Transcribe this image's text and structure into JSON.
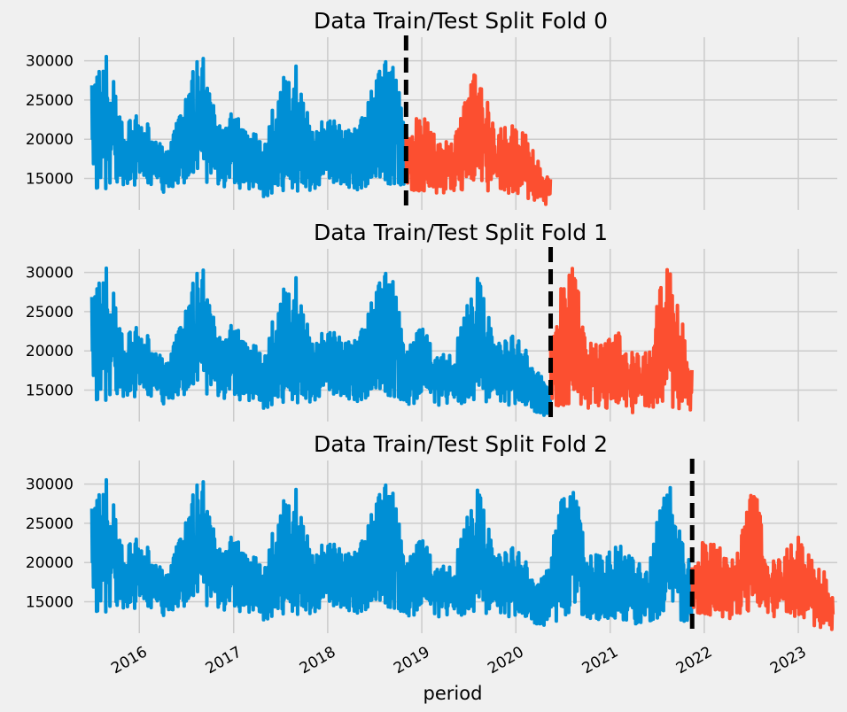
{
  "figure": {
    "xlabel": "period"
  },
  "colors": {
    "train": "#008fd5",
    "test": "#fc4f30",
    "split_line": "#000000",
    "grid": "#cbcbcb",
    "background": "#f0f0f0"
  },
  "chart_data": [
    {
      "type": "line",
      "title": "Data Train/Test Split Fold 0",
      "xlabel": "period",
      "ylabel": "",
      "x_range": [
        "2015-06-01",
        "2023-06-01"
      ],
      "ylim": [
        11000,
        33000
      ],
      "yticks": [
        15000,
        20000,
        25000,
        30000
      ],
      "grid": true,
      "split_date": "2018-11-01",
      "series": [
        {
          "role": "train",
          "x_range": [
            "2015-07-01",
            "2018-11-01"
          ],
          "envelope": [
            [
              "2015-07-01",
              13800,
              28000
            ],
            [
              "2015-09-01",
              13500,
              31000
            ],
            [
              "2015-11-01",
              13800,
              22000
            ],
            [
              "2016-01-01",
              14200,
              23500
            ],
            [
              "2016-03-01",
              13500,
              21000
            ],
            [
              "2016-05-01",
              13000,
              19500
            ],
            [
              "2016-07-01",
              14000,
              27000
            ],
            [
              "2016-09-01",
              14000,
              32000
            ],
            [
              "2016-11-01",
              13500,
              21500
            ],
            [
              "2017-01-01",
              14000,
              24500
            ],
            [
              "2017-03-01",
              13200,
              21500
            ],
            [
              "2017-05-01",
              12500,
              20000
            ],
            [
              "2017-07-01",
              13500,
              28000
            ],
            [
              "2017-09-01",
              13200,
              29500
            ],
            [
              "2017-11-01",
              13000,
              21000
            ],
            [
              "2018-01-01",
              14000,
              23500
            ],
            [
              "2018-03-01",
              13500,
              21500
            ],
            [
              "2018-05-01",
              13500,
              21500
            ],
            [
              "2018-07-01",
              14000,
              29000
            ],
            [
              "2018-09-01",
              13500,
              32000
            ],
            [
              "2018-11-01",
              13500,
              23000
            ]
          ]
        },
        {
          "role": "test",
          "x_range": [
            "2018-11-01",
            "2020-05-15"
          ],
          "envelope": [
            [
              "2018-11-01",
              13000,
              21000
            ],
            [
              "2019-01-01",
              13500,
              23500
            ],
            [
              "2019-03-01",
              13000,
              20000
            ],
            [
              "2019-05-01",
              13000,
              19500
            ],
            [
              "2019-07-01",
              13500,
              26500
            ],
            [
              "2019-08-15",
              13500,
              30500
            ],
            [
              "2019-10-15",
              13000,
              21000
            ],
            [
              "2019-12-15",
              13000,
              22000
            ],
            [
              "2020-02-15",
              12500,
              20500
            ],
            [
              "2020-04-01",
              12000,
              17000
            ],
            [
              "2020-05-15",
              11500,
              15500
            ]
          ]
        }
      ]
    },
    {
      "type": "line",
      "title": "Data Train/Test Split Fold 1",
      "xlabel": "period",
      "ylabel": "",
      "x_range": [
        "2015-06-01",
        "2023-06-01"
      ],
      "ylim": [
        11000,
        33000
      ],
      "yticks": [
        15000,
        20000,
        25000,
        30000
      ],
      "grid": true,
      "split_date": "2020-05-15",
      "series": [
        {
          "role": "train",
          "x_range": [
            "2015-07-01",
            "2020-05-15"
          ],
          "envelope": [
            [
              "2015-07-01",
              13800,
              28000
            ],
            [
              "2015-09-01",
              13500,
              31000
            ],
            [
              "2015-11-01",
              13800,
              22000
            ],
            [
              "2016-01-01",
              14200,
              23500
            ],
            [
              "2016-03-01",
              13500,
              21000
            ],
            [
              "2016-05-01",
              13000,
              19500
            ],
            [
              "2016-07-01",
              14000,
              27000
            ],
            [
              "2016-09-01",
              14000,
              32000
            ],
            [
              "2016-11-01",
              13500,
              21500
            ],
            [
              "2017-01-01",
              14000,
              24500
            ],
            [
              "2017-03-01",
              13200,
              21500
            ],
            [
              "2017-05-01",
              12500,
              20000
            ],
            [
              "2017-07-01",
              13500,
              28000
            ],
            [
              "2017-09-01",
              13200,
              29500
            ],
            [
              "2017-11-01",
              13000,
              21000
            ],
            [
              "2018-01-01",
              14000,
              23500
            ],
            [
              "2018-03-01",
              13500,
              21500
            ],
            [
              "2018-05-01",
              13500,
              21500
            ],
            [
              "2018-07-01",
              14000,
              29000
            ],
            [
              "2018-09-01",
              13500,
              32000
            ],
            [
              "2018-11-01",
              13000,
              21000
            ],
            [
              "2019-01-01",
              13500,
              23500
            ],
            [
              "2019-03-01",
              13000,
              20000
            ],
            [
              "2019-05-01",
              13000,
              19500
            ],
            [
              "2019-07-01",
              13500,
              26500
            ],
            [
              "2019-08-15",
              13500,
              30500
            ],
            [
              "2019-10-15",
              13000,
              21000
            ],
            [
              "2019-12-15",
              13000,
              22000
            ],
            [
              "2020-02-15",
              12500,
              20500
            ],
            [
              "2020-04-01",
              12000,
              17000
            ],
            [
              "2020-05-15",
              11500,
              15500
            ]
          ]
        },
        {
          "role": "test",
          "x_range": [
            "2020-05-15",
            "2021-11-15"
          ],
          "envelope": [
            [
              "2020-05-15",
              12000,
              22000
            ],
            [
              "2020-07-01",
              13000,
              29000
            ],
            [
              "2020-08-15",
              13500,
              31000
            ],
            [
              "2020-10-01",
              12500,
              21000
            ],
            [
              "2020-12-01",
              12500,
              21000
            ],
            [
              "2021-02-01",
              12500,
              22500
            ],
            [
              "2021-04-01",
              12000,
              20500
            ],
            [
              "2021-06-01",
              12500,
              19500
            ],
            [
              "2021-07-15",
              13000,
              29000
            ],
            [
              "2021-08-15",
              13000,
              31000
            ],
            [
              "2021-10-01",
              12500,
              25000
            ],
            [
              "2021-11-15",
              12500,
              18500
            ]
          ]
        }
      ]
    },
    {
      "type": "line",
      "title": "Data Train/Test Split Fold 2",
      "xlabel": "period",
      "ylabel": "",
      "x_range": [
        "2015-06-01",
        "2023-06-01"
      ],
      "ylim": [
        11000,
        33000
      ],
      "yticks": [
        15000,
        20000,
        25000,
        30000
      ],
      "grid": true,
      "split_date": "2021-11-15",
      "xticks": [
        "2016",
        "2017",
        "2018",
        "2019",
        "2020",
        "2021",
        "2022",
        "2023"
      ],
      "series": [
        {
          "role": "train",
          "x_range": [
            "2015-07-01",
            "2021-11-15"
          ],
          "envelope": [
            [
              "2015-07-01",
              13800,
              28000
            ],
            [
              "2015-09-01",
              13500,
              31000
            ],
            [
              "2015-11-01",
              13800,
              22000
            ],
            [
              "2016-01-01",
              14200,
              23500
            ],
            [
              "2016-03-01",
              13500,
              21000
            ],
            [
              "2016-05-01",
              13000,
              19500
            ],
            [
              "2016-07-01",
              14000,
              27000
            ],
            [
              "2016-09-01",
              14000,
              32000
            ],
            [
              "2016-11-01",
              13500,
              21500
            ],
            [
              "2017-01-01",
              14000,
              24500
            ],
            [
              "2017-03-01",
              13200,
              21500
            ],
            [
              "2017-05-01",
              12500,
              20000
            ],
            [
              "2017-07-01",
              13500,
              28000
            ],
            [
              "2017-09-01",
              13200,
              29500
            ],
            [
              "2017-11-01",
              13000,
              21000
            ],
            [
              "2018-01-01",
              14000,
              23500
            ],
            [
              "2018-03-01",
              13500,
              21500
            ],
            [
              "2018-05-01",
              13500,
              21500
            ],
            [
              "2018-07-01",
              14000,
              29000
            ],
            [
              "2018-09-01",
              13500,
              32000
            ],
            [
              "2018-11-01",
              13000,
              21000
            ],
            [
              "2019-01-01",
              13500,
              23500
            ],
            [
              "2019-03-01",
              13000,
              20000
            ],
            [
              "2019-05-01",
              13000,
              19500
            ],
            [
              "2019-07-01",
              13500,
              26500
            ],
            [
              "2019-08-15",
              13500,
              30500
            ],
            [
              "2019-10-15",
              13000,
              21000
            ],
            [
              "2019-12-15",
              13000,
              22000
            ],
            [
              "2020-02-15",
              12500,
              20500
            ],
            [
              "2020-04-01",
              12000,
              17000
            ],
            [
              "2020-05-15",
              12000,
              22000
            ],
            [
              "2020-07-01",
              13000,
              29000
            ],
            [
              "2020-08-15",
              13500,
              31000
            ],
            [
              "2020-10-01",
              12500,
              21000
            ],
            [
              "2020-12-01",
              12500,
              21000
            ],
            [
              "2021-02-01",
              12500,
              22500
            ],
            [
              "2021-04-01",
              12000,
              20500
            ],
            [
              "2021-06-01",
              12500,
              19500
            ],
            [
              "2021-07-15",
              13000,
              29000
            ],
            [
              "2021-08-15",
              13000,
              31000
            ],
            [
              "2021-10-01",
              12500,
              25000
            ],
            [
              "2021-11-15",
              12500,
              18500
            ]
          ]
        },
        {
          "role": "test",
          "x_range": [
            "2021-11-15",
            "2023-05-15"
          ],
          "envelope": [
            [
              "2021-11-15",
              13000,
              20000
            ],
            [
              "2022-01-01",
              13500,
              23000
            ],
            [
              "2022-03-01",
              13000,
              22000
            ],
            [
              "2022-05-01",
              12500,
              20000
            ],
            [
              "2022-06-15",
              13500,
              27000
            ],
            [
              "2022-07-15",
              13500,
              30500
            ],
            [
              "2022-09-01",
              13000,
              21000
            ],
            [
              "2022-11-01",
              13000,
              21000
            ],
            [
              "2023-01-01",
              13000,
              23500
            ],
            [
              "2023-03-01",
              12000,
              20000
            ],
            [
              "2023-04-15",
              11500,
              19000
            ],
            [
              "2023-05-15",
              11500,
              17000
            ]
          ]
        }
      ]
    }
  ]
}
